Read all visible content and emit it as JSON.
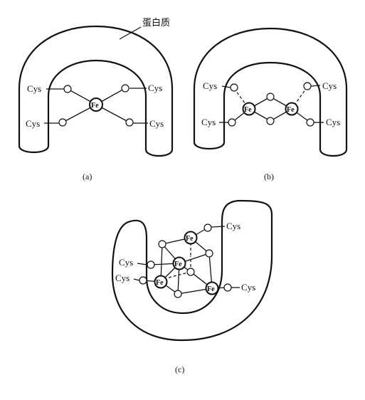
{
  "protein_label": "蛋白质",
  "panels": [
    {
      "caption": "(a)",
      "ligand": "Cys",
      "metal": "Fe"
    },
    {
      "caption": "(b)",
      "ligand": "Cys",
      "metal": "Fe"
    },
    {
      "caption": "(c)",
      "ligand": "Cys",
      "metal": "Fe"
    }
  ]
}
